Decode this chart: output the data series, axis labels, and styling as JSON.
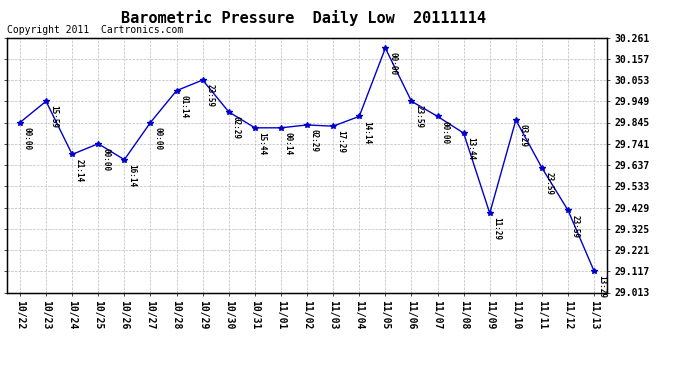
{
  "title": "Barometric Pressure  Daily Low  20111114",
  "copyright": "Copyright 2011  Cartronics.com",
  "x_labels": [
    "10/22",
    "10/23",
    "10/24",
    "10/25",
    "10/26",
    "10/27",
    "10/28",
    "10/29",
    "10/30",
    "10/31",
    "11/01",
    "11/02",
    "11/03",
    "11/04",
    "11/05",
    "11/06",
    "11/07",
    "11/08",
    "11/09",
    "11/10",
    "11/11",
    "11/12",
    "11/13"
  ],
  "y_values": [
    29.845,
    29.949,
    29.689,
    29.741,
    29.663,
    29.845,
    30.001,
    30.053,
    29.897,
    29.819,
    29.819,
    29.833,
    29.827,
    29.875,
    30.209,
    29.949,
    29.875,
    29.793,
    29.401,
    29.857,
    29.623,
    29.415,
    29.117
  ],
  "time_labels": [
    "00:00",
    "15:59",
    "21:14",
    "00:00",
    "16:14",
    "00:00",
    "01:14",
    "23:59",
    "02:29",
    "15:44",
    "00:14",
    "02:29",
    "17:29",
    "14:14",
    "00:00",
    "23:59",
    "00:00",
    "13:44",
    "11:29",
    "03:29",
    "23:59",
    "23:59",
    "13:29"
  ],
  "y_ticks": [
    29.013,
    29.117,
    29.221,
    29.325,
    29.429,
    29.533,
    29.637,
    29.741,
    29.845,
    29.949,
    30.053,
    30.157,
    30.261
  ],
  "line_color": "#0000CC",
  "marker": "*",
  "background_color": "#ffffff",
  "grid_color": "#bbbbbb",
  "title_fontsize": 11,
  "copyright_fontsize": 7
}
